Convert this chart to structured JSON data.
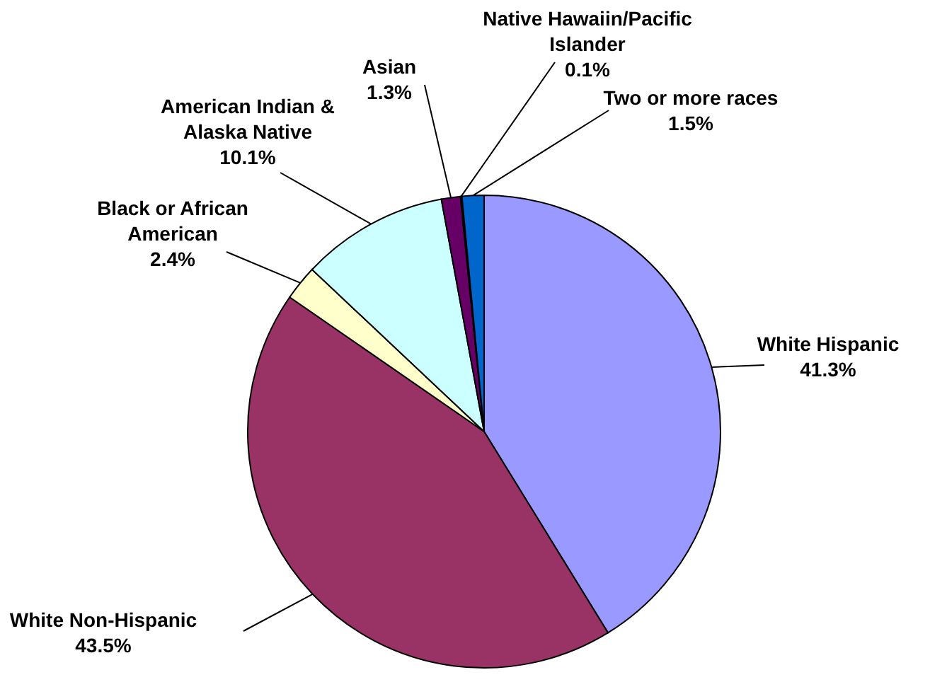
{
  "chart_data": {
    "type": "pie",
    "categories": [
      "White Hispanic",
      "White Non-Hispanic",
      "Black or African American",
      "American Indian & Alaska Native",
      "Asian",
      "Native Hawaiin/Pacific Islander",
      "Two or more races"
    ],
    "values": [
      41.3,
      43.5,
      2.4,
      10.1,
      1.3,
      0.1,
      1.5
    ],
    "colors": [
      "#9999ff",
      "#993366",
      "#ffffcc",
      "#ccffff",
      "#660066",
      "#ff8080",
      "#0066cc"
    ],
    "value_labels": [
      "41.3%",
      "43.5%",
      "2.4%",
      "10.1%",
      "1.3%",
      "0.1%",
      "1.5%"
    ]
  }
}
